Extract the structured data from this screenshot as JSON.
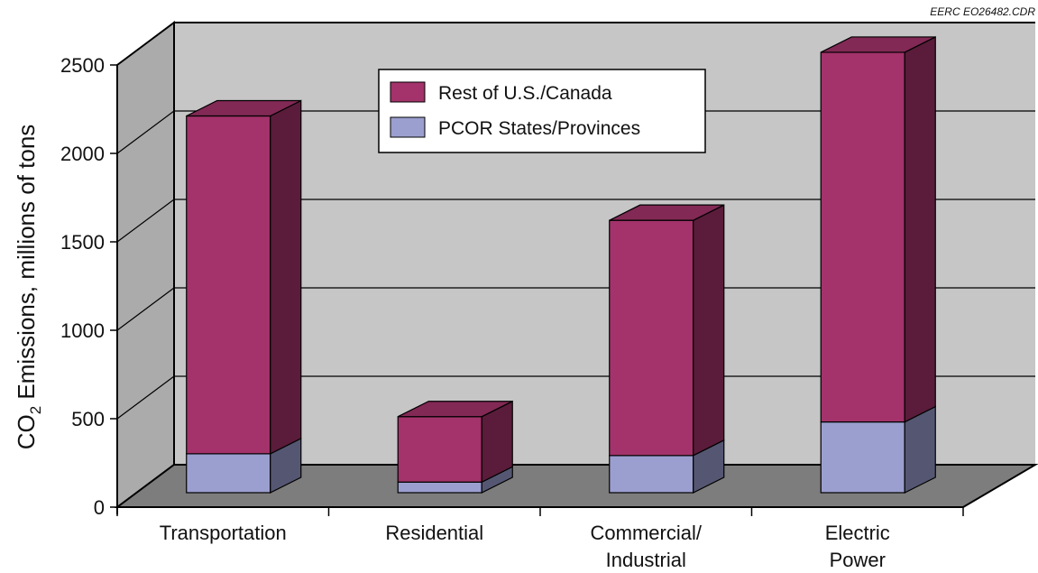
{
  "credit": "EERC EO26482.CDR",
  "chart_data": {
    "type": "bar",
    "stacked": true,
    "three_d": true,
    "categories": [
      [
        "Transportation"
      ],
      [
        "Residential"
      ],
      [
        "Commercial/",
        "Industrial"
      ],
      [
        "Electric",
        "Power"
      ]
    ],
    "series": [
      {
        "name": "PCOR States/Provinces",
        "color": "#9b9fcf",
        "values": [
          220,
          60,
          210,
          400
        ]
      },
      {
        "name": "Rest of U.S./Canada",
        "color": "#a3336a",
        "values": [
          1910,
          370,
          1330,
          2090
        ]
      }
    ],
    "ylabel_main": "CO",
    "ylabel_sub": "2",
    "ylabel_rest": " Emissions, millions of tons",
    "yticks": [
      "0",
      "500",
      "1000",
      "1500",
      "2000",
      "2500"
    ],
    "ylim": [
      0,
      2500
    ],
    "grid": true,
    "legend_position": "top-center"
  }
}
